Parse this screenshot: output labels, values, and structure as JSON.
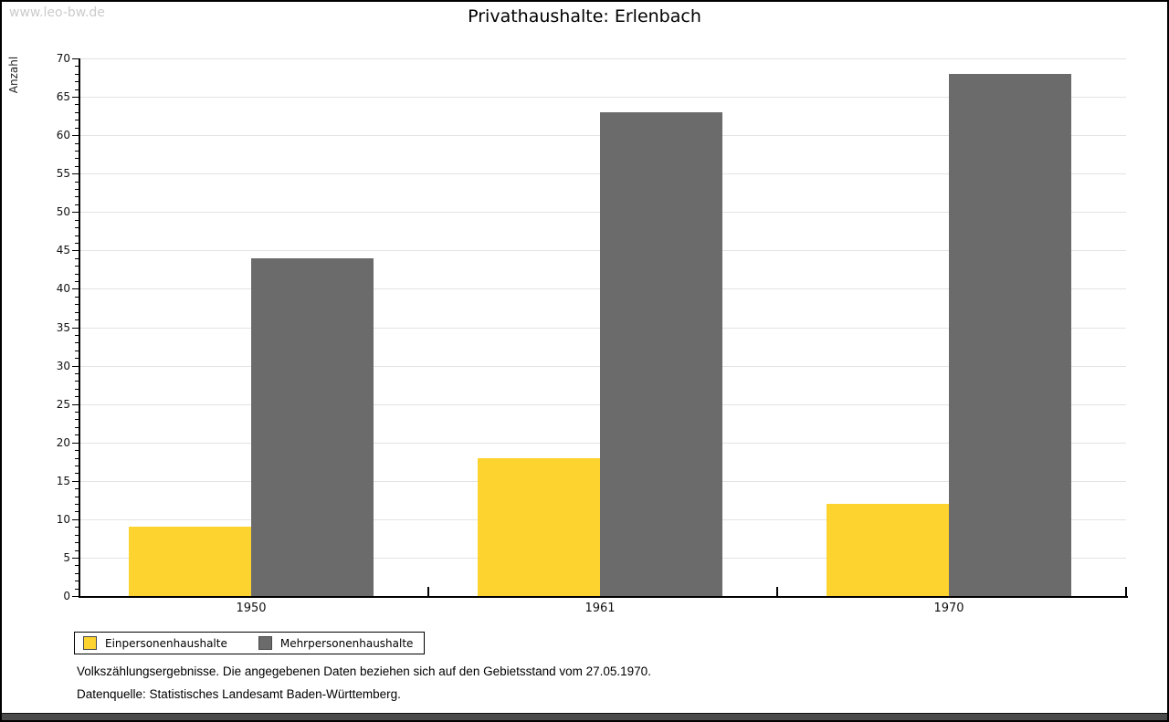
{
  "watermark": "www.leo-bw.de",
  "header": {
    "title": "Privathaushalte: Erlenbach"
  },
  "chart_data": {
    "type": "bar",
    "title": "Privathaushalte: Erlenbach",
    "categories": [
      "1950",
      "1961",
      "1970"
    ],
    "series": [
      {
        "name": "Einpersonenhaushalte",
        "color": "#fcd32f",
        "values": [
          9,
          18,
          12
        ]
      },
      {
        "name": "Mehrpersonenhaushalte",
        "color": "#6b6b6b",
        "values": [
          44,
          63,
          68
        ]
      }
    ],
    "xlabel": "",
    "ylabel": "Anzahl",
    "ylim": [
      0,
      70
    ],
    "ytick_step": 5,
    "y_minor_step": 1,
    "grid": true,
    "gridline_color": "#e3e3e3",
    "legend_position": "bottom-left"
  },
  "footer": {
    "note": "Volkszählungsergebnisse. Die angegebenen Daten beziehen sich auf den Gebietsstand vom 27.05.1970.",
    "source": "Datenquelle: Statistisches Landesamt Baden-Württemberg."
  }
}
